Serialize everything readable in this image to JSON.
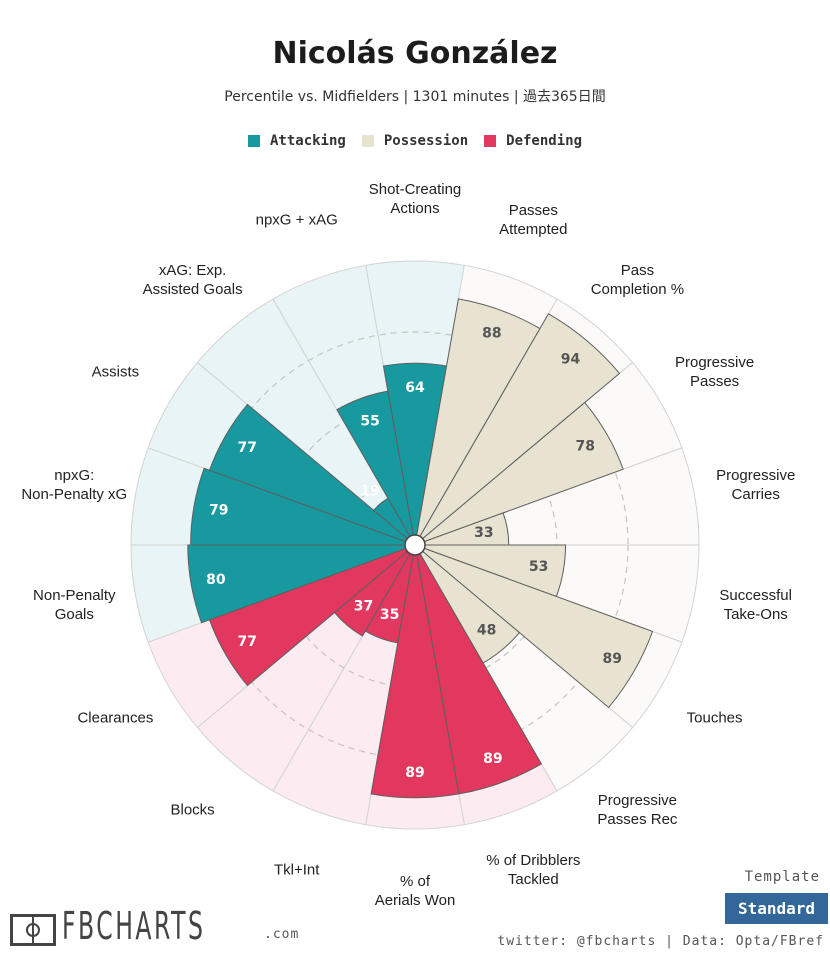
{
  "header": {
    "title": "Nicolás González",
    "subtitle": "Percentile vs. Midfielders | 1301 minutes | 過去365日間"
  },
  "legend": [
    {
      "label": "Attacking",
      "color": "#17999f"
    },
    {
      "label": "Possession",
      "color": "#e8e2d1"
    },
    {
      "label": "Defending",
      "color": "#e2375e"
    }
  ],
  "chart_data": {
    "type": "radial-bar",
    "range": [
      0,
      100
    ],
    "categories": [
      {
        "label": "Shot-Creating Actions",
        "value": 64,
        "group": "Attacking"
      },
      {
        "label": "Passes Attempted",
        "value": 88,
        "group": "Possession"
      },
      {
        "label": "Pass Completion %",
        "value": 94,
        "group": "Possession"
      },
      {
        "label": "Progressive Passes",
        "value": 78,
        "group": "Possession"
      },
      {
        "label": "Progressive Carries",
        "value": 33,
        "group": "Possession"
      },
      {
        "label": "Successful Take-Ons",
        "value": 53,
        "group": "Possession"
      },
      {
        "label": "Touches",
        "value": 89,
        "group": "Possession"
      },
      {
        "label": "Progressive Passes Rec",
        "value": 48,
        "group": "Possession"
      },
      {
        "label": "% of Dribblers Tackled",
        "value": 89,
        "group": "Defending"
      },
      {
        "label": "% of Aerials Won",
        "value": 89,
        "group": "Defending"
      },
      {
        "label": "Tkl+Int",
        "value": 35,
        "group": "Defending"
      },
      {
        "label": "Blocks",
        "value": 37,
        "group": "Defending"
      },
      {
        "label": "Clearances",
        "value": 77,
        "group": "Defending"
      },
      {
        "label": "Non-Penalty Goals",
        "value": 80,
        "group": "Attacking"
      },
      {
        "label": "npxG: Non-Penalty xG",
        "value": 79,
        "group": "Attacking"
      },
      {
        "label": "Assists",
        "value": 77,
        "group": "Attacking"
      },
      {
        "label": "xAG: Exp. Assisted Goals",
        "value": 19,
        "group": "Attacking"
      },
      {
        "label": "npxG + xAG",
        "value": 55,
        "group": "Attacking"
      }
    ],
    "colors": {
      "Attacking": {
        "fill": "#17999f",
        "background": "#e8f4f5"
      },
      "Possession": {
        "fill": "#e8e2d1",
        "background": "#fbfaf8"
      },
      "Defending": {
        "fill": "#e2375e",
        "background": "#fcebf0"
      }
    }
  },
  "footer": {
    "logo_text": "FBCHARTS",
    "logo_suffix": ".com",
    "template_label": "Template",
    "template_value": "Standard",
    "credits": "twitter: @fbcharts | Data: Opta/FBref"
  }
}
